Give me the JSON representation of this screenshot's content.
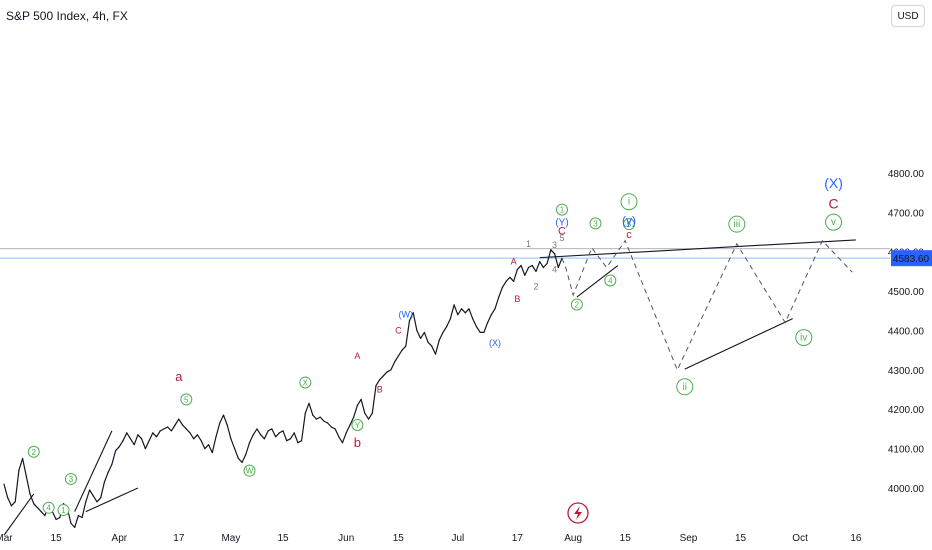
{
  "header": {
    "title": "S&P 500 Index, 4h, FX",
    "currency": "USD"
  },
  "flash_icon": "lightning-icon",
  "chart_data": {
    "type": "line",
    "title": "S&P 500 Index, 4h, FX",
    "price_label": 4583.6,
    "price_label_text": "4583.60",
    "ylim": [
      3940,
      4880
    ],
    "y_ticks": [
      4000,
      4100,
      4200,
      4300,
      4400,
      4500,
      4600,
      4700,
      4800
    ],
    "y_tick_labels": [
      "4000.00",
      "4100.00",
      "4200.00",
      "4300.00",
      "4400.00",
      "4500.00",
      "4600.00",
      "4700.00",
      "4800.00"
    ],
    "x_ticks": [
      {
        "label": "Mar",
        "t": 0
      },
      {
        "label": "15",
        "t": 14
      },
      {
        "label": "Apr",
        "t": 31
      },
      {
        "label": "17",
        "t": 47
      },
      {
        "label": "May",
        "t": 61
      },
      {
        "label": "15",
        "t": 75
      },
      {
        "label": "Jun",
        "t": 92
      },
      {
        "label": "15",
        "t": 106
      },
      {
        "label": "Jul",
        "t": 122
      },
      {
        "label": "17",
        "t": 138
      },
      {
        "label": "Aug",
        "t": 153
      },
      {
        "label": "15",
        "t": 167
      },
      {
        "label": "Sep",
        "t": 184
      },
      {
        "label": "15",
        "t": 198
      },
      {
        "label": "Oct",
        "t": 214
      },
      {
        "label": "16",
        "t": 229
      }
    ],
    "price": [
      [
        0,
        4010
      ],
      [
        1,
        3975
      ],
      [
        2,
        3955
      ],
      [
        3,
        3965
      ],
      [
        4,
        4045
      ],
      [
        5,
        4075
      ],
      [
        6,
        4030
      ],
      [
        7,
        3985
      ],
      [
        8,
        3960
      ],
      [
        9,
        3950
      ],
      [
        10,
        3940
      ],
      [
        11,
        3930
      ],
      [
        12,
        3955
      ],
      [
        13,
        3940
      ],
      [
        14,
        3920
      ],
      [
        15,
        3925
      ],
      [
        16,
        3960
      ],
      [
        17,
        3950
      ],
      [
        18,
        3910
      ],
      [
        19,
        3900
      ],
      [
        20,
        3930
      ],
      [
        21,
        3925
      ],
      [
        22,
        3965
      ],
      [
        23,
        3995
      ],
      [
        24,
        3980
      ],
      [
        25,
        3965
      ],
      [
        26,
        3975
      ],
      [
        27,
        4015
      ],
      [
        28,
        4040
      ],
      [
        29,
        4060
      ],
      [
        30,
        4095
      ],
      [
        31,
        4105
      ],
      [
        32,
        4120
      ],
      [
        33,
        4140
      ],
      [
        34,
        4125
      ],
      [
        35,
        4110
      ],
      [
        36,
        4135
      ],
      [
        37,
        4125
      ],
      [
        38,
        4100
      ],
      [
        39,
        4120
      ],
      [
        40,
        4140
      ],
      [
        41,
        4130
      ],
      [
        42,
        4145
      ],
      [
        43,
        4150
      ],
      [
        44,
        4155
      ],
      [
        45,
        4145
      ],
      [
        46,
        4160
      ],
      [
        47,
        4175
      ],
      [
        48,
        4160
      ],
      [
        49,
        4150
      ],
      [
        50,
        4140
      ],
      [
        51,
        4125
      ],
      [
        52,
        4135
      ],
      [
        53,
        4120
      ],
      [
        54,
        4100
      ],
      [
        55,
        4110
      ],
      [
        56,
        4090
      ],
      [
        57,
        4130
      ],
      [
        58,
        4165
      ],
      [
        59,
        4185
      ],
      [
        60,
        4160
      ],
      [
        61,
        4125
      ],
      [
        62,
        4100
      ],
      [
        63,
        4075
      ],
      [
        64,
        4065
      ],
      [
        65,
        4085
      ],
      [
        66,
        4115
      ],
      [
        67,
        4135
      ],
      [
        68,
        4150
      ],
      [
        69,
        4135
      ],
      [
        70,
        4125
      ],
      [
        71,
        4145
      ],
      [
        72,
        4150
      ],
      [
        73,
        4130
      ],
      [
        74,
        4140
      ],
      [
        75,
        4145
      ],
      [
        76,
        4120
      ],
      [
        77,
        4125
      ],
      [
        78,
        4140
      ],
      [
        79,
        4115
      ],
      [
        80,
        4120
      ],
      [
        81,
        4190
      ],
      [
        82,
        4215
      ],
      [
        83,
        4185
      ],
      [
        84,
        4175
      ],
      [
        85,
        4180
      ],
      [
        86,
        4170
      ],
      [
        87,
        4165
      ],
      [
        88,
        4155
      ],
      [
        89,
        4150
      ],
      [
        90,
        4130
      ],
      [
        91,
        4115
      ],
      [
        92,
        4140
      ],
      [
        93,
        4160
      ],
      [
        94,
        4180
      ],
      [
        95,
        4210
      ],
      [
        96,
        4225
      ],
      [
        97,
        4190
      ],
      [
        98,
        4175
      ],
      [
        99,
        4190
      ],
      [
        100,
        4260
      ],
      [
        101,
        4275
      ],
      [
        102,
        4285
      ],
      [
        103,
        4295
      ],
      [
        104,
        4300
      ],
      [
        105,
        4320
      ],
      [
        106,
        4335
      ],
      [
        107,
        4350
      ],
      [
        108,
        4360
      ],
      [
        109,
        4425
      ],
      [
        110,
        4445
      ],
      [
        111,
        4400
      ],
      [
        112,
        4380
      ],
      [
        113,
        4395
      ],
      [
        114,
        4370
      ],
      [
        115,
        4360
      ],
      [
        116,
        4340
      ],
      [
        117,
        4375
      ],
      [
        118,
        4395
      ],
      [
        119,
        4410
      ],
      [
        120,
        4430
      ],
      [
        121,
        4465
      ],
      [
        122,
        4440
      ],
      [
        123,
        4455
      ],
      [
        124,
        4445
      ],
      [
        125,
        4455
      ],
      [
        126,
        4430
      ],
      [
        127,
        4410
      ],
      [
        128,
        4395
      ],
      [
        129,
        4395
      ],
      [
        130,
        4420
      ],
      [
        131,
        4440
      ],
      [
        132,
        4455
      ],
      [
        133,
        4485
      ],
      [
        134,
        4510
      ],
      [
        135,
        4525
      ],
      [
        136,
        4535
      ],
      [
        137,
        4525
      ],
      [
        138,
        4555
      ],
      [
        139,
        4565
      ],
      [
        140,
        4540
      ],
      [
        141,
        4560
      ],
      [
        142,
        4565
      ],
      [
        143,
        4550
      ],
      [
        144,
        4575
      ],
      [
        145,
        4560
      ],
      [
        146,
        4570
      ],
      [
        147,
        4605
      ],
      [
        148,
        4595
      ],
      [
        149,
        4560
      ],
      [
        150,
        4583.6
      ]
    ],
    "price_color": "#131722",
    "forecast": [
      [
        150,
        4583
      ],
      [
        151,
        4560
      ],
      [
        153,
        4490
      ],
      [
        158,
        4610
      ],
      [
        162,
        4560
      ],
      [
        167,
        4628
      ],
      [
        181,
        4300
      ],
      [
        197,
        4620
      ],
      [
        210,
        4420
      ],
      [
        220,
        4628
      ],
      [
        228,
        4548
      ]
    ],
    "trendlines": [
      {
        "from": [
          144,
          4585
        ],
        "to": [
          229,
          4630
        ],
        "color": "#131722"
      },
      {
        "from": [
          154,
          4485
        ],
        "to": [
          165,
          4565
        ],
        "color": "#131722"
      },
      {
        "from": [
          183,
          4302
        ],
        "to": [
          212,
          4430
        ],
        "color": "#131722"
      },
      {
        "from": [
          19,
          3940
        ],
        "to": [
          29,
          4145
        ],
        "color": "#131722"
      },
      {
        "from": [
          22,
          3940
        ],
        "to": [
          36,
          4000
        ],
        "color": "#131722"
      },
      {
        "from": [
          0,
          3880
        ],
        "to": [
          8,
          3985
        ],
        "color": "#131722"
      }
    ],
    "hlines": [
      {
        "y": 4608,
        "color": "#b2b5be"
      },
      {
        "y": 4583.6,
        "color": "#90bff9"
      }
    ],
    "wave_labels": [
      {
        "text": "2",
        "t": 8,
        "y": 4092,
        "style": "circle",
        "color": "#4caf50"
      },
      {
        "text": "3",
        "t": 18,
        "y": 4023,
        "style": "circle",
        "color": "#4caf50"
      },
      {
        "text": "4",
        "t": 12,
        "y": 3950,
        "style": "circle",
        "color": "#4caf50"
      },
      {
        "text": "1",
        "t": 16,
        "y": 3944,
        "style": "circle",
        "color": "#4caf50"
      },
      {
        "text": "a",
        "t": 47,
        "y": 4283,
        "style": "plain",
        "color": "#b71c3c",
        "size": 13
      },
      {
        "text": "5",
        "t": 49,
        "y": 4225,
        "style": "circle",
        "color": "#4caf50"
      },
      {
        "text": "W",
        "t": 66,
        "y": 4044,
        "style": "circle",
        "color": "#4caf50"
      },
      {
        "text": "X",
        "t": 81,
        "y": 4268,
        "style": "circle",
        "color": "#4caf50"
      },
      {
        "text": "Y",
        "t": 95,
        "y": 4160,
        "style": "circle",
        "color": "#4caf50"
      },
      {
        "text": "b",
        "t": 95,
        "y": 4115,
        "style": "plain",
        "color": "#b71c3c",
        "size": 13
      },
      {
        "text": "A",
        "t": 95,
        "y": 4335,
        "style": "plain",
        "color": "#b71c3c",
        "size": 9
      },
      {
        "text": "B",
        "t": 101,
        "y": 4250,
        "style": "plain",
        "color": "#b71c3c",
        "size": 9
      },
      {
        "text": "C",
        "t": 106,
        "y": 4400,
        "style": "plain",
        "color": "#b71c3c",
        "size": 9
      },
      {
        "text": "(W)",
        "t": 108,
        "y": 4440,
        "style": "plain",
        "color": "#2962ff",
        "size": 9
      },
      {
        "text": "(X)",
        "t": 132,
        "y": 4368,
        "style": "plain",
        "color": "#2962ff",
        "size": 9
      },
      {
        "text": "A",
        "t": 137,
        "y": 4575,
        "style": "plain",
        "color": "#b71c3c",
        "size": 9
      },
      {
        "text": "B",
        "t": 138,
        "y": 4480,
        "style": "plain",
        "color": "#b71c3c",
        "size": 9
      },
      {
        "text": "1",
        "t": 141,
        "y": 4620,
        "style": "plain",
        "color": "#787b86",
        "size": 9
      },
      {
        "text": "2",
        "t": 143,
        "y": 4512,
        "style": "plain",
        "color": "#787b86",
        "size": 9
      },
      {
        "text": "3",
        "t": 148,
        "y": 4617,
        "style": "plain",
        "color": "#787b86",
        "size": 9
      },
      {
        "text": "4",
        "t": 148,
        "y": 4555,
        "style": "plain",
        "color": "#787b86",
        "size": 9
      },
      {
        "text": "5",
        "t": 150,
        "y": 4635,
        "style": "plain",
        "color": "#787b86",
        "size": 9
      },
      {
        "text": "C",
        "t": 150,
        "y": 4651,
        "style": "plain",
        "color": "#b71c3c",
        "size": 11
      },
      {
        "text": "(Y)",
        "t": 150,
        "y": 4673,
        "style": "plain",
        "color": "#2962ff",
        "size": 10
      },
      {
        "text": "1",
        "t": 150,
        "y": 4707,
        "style": "circle",
        "color": "#4caf50"
      },
      {
        "text": "2",
        "t": 154,
        "y": 4466,
        "style": "circle",
        "color": "#4caf50"
      },
      {
        "text": "3",
        "t": 159,
        "y": 4672,
        "style": "circle",
        "color": "#4caf50"
      },
      {
        "text": "4",
        "t": 163,
        "y": 4527,
        "style": "circle",
        "color": "#4caf50"
      },
      {
        "text": "5",
        "t": 168,
        "y": 4670,
        "style": "circle",
        "color": "#4caf50"
      },
      {
        "text": "c",
        "t": 168,
        "y": 4642,
        "style": "plain",
        "color": "#b71c3c",
        "size": 11
      },
      {
        "text": "(y)",
        "t": 168,
        "y": 4679,
        "style": "plain",
        "color": "#2962ff",
        "size": 12
      },
      {
        "text": "i",
        "t": 168,
        "y": 4727,
        "style": "circlebig",
        "color": "#4caf50"
      },
      {
        "text": "ii",
        "t": 183,
        "y": 4257,
        "style": "circlebig",
        "color": "#4caf50"
      },
      {
        "text": "iii",
        "t": 197,
        "y": 4670,
        "style": "circlebig",
        "color": "#4caf50"
      },
      {
        "text": "iv",
        "t": 215,
        "y": 4382,
        "style": "circlebig",
        "color": "#4caf50"
      },
      {
        "text": "v",
        "t": 223,
        "y": 4675,
        "style": "circlebig",
        "color": "#4caf50"
      },
      {
        "text": "C",
        "t": 223,
        "y": 4722,
        "style": "plain",
        "color": "#b71c3c",
        "size": 14
      },
      {
        "text": "(X)",
        "t": 223,
        "y": 4775,
        "style": "plain",
        "color": "#2962ff",
        "size": 14
      }
    ]
  }
}
